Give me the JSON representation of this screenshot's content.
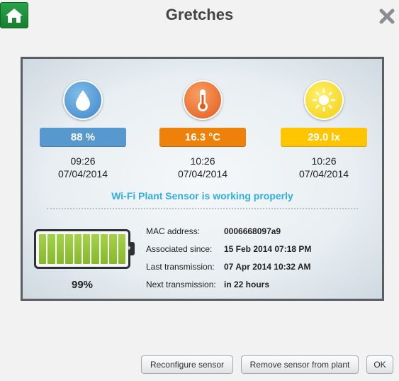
{
  "header": {
    "title": "Gretches",
    "home_icon": "home-icon",
    "close_icon": "close-icon"
  },
  "metrics": [
    {
      "name": "moisture",
      "icon": "water-drop-icon",
      "value": "88 %",
      "time": "09:26",
      "date": "07/04/2014",
      "color": "#5798cf"
    },
    {
      "name": "temperature",
      "icon": "thermometer-icon",
      "value": "16.3 °C",
      "time": "10:26",
      "date": "07/04/2014",
      "color": "#ee8109"
    },
    {
      "name": "light",
      "icon": "sun-icon",
      "value": "29.0 lx",
      "time": "10:26",
      "date": "07/04/2014",
      "color": "#fec500"
    }
  ],
  "status": "Wi-Fi Plant Sensor is working properly",
  "battery": {
    "percent_label": "99%",
    "level": 0.99
  },
  "info": [
    {
      "label": "MAC address:",
      "value": "0006668097a9"
    },
    {
      "label": "Associated since:",
      "value": "15 Feb 2014 07:18 PM"
    },
    {
      "label": "Last transmission:",
      "value": "07 Apr 2014 10:32 AM"
    },
    {
      "label": "Next transmission:",
      "value": "in 22 hours"
    }
  ],
  "buttons": {
    "reconfigure": "Reconfigure sensor",
    "remove": "Remove sensor from plant",
    "ok": "OK"
  }
}
